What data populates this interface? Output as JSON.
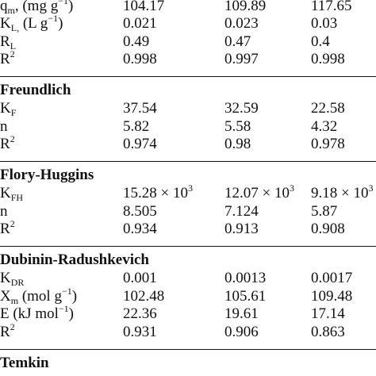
{
  "table": {
    "sections": [
      {
        "rows": [
          {
            "label": [
              {
                "t": "q"
              },
              {
                "sub": "m"
              },
              {
                "t": ", (mg g"
              },
              {
                "sup": "−1"
              },
              {
                "t": ")"
              }
            ],
            "cells": [
              104.17,
              109.89,
              117.65
            ]
          },
          {
            "label": [
              {
                "t": "K"
              },
              {
                "sub": "L,"
              },
              {
                "t": " (L g"
              },
              {
                "sup": "−1"
              },
              {
                "t": ")"
              }
            ],
            "cells": [
              0.021,
              0.023,
              0.03
            ]
          },
          {
            "label": [
              {
                "t": "R"
              },
              {
                "sub": "L"
              }
            ],
            "cells": [
              0.49,
              0.47,
              0.4
            ]
          },
          {
            "label": [
              {
                "t": "R"
              },
              {
                "sup": "2"
              }
            ],
            "cells": [
              0.998,
              0.997,
              0.998
            ]
          }
        ]
      },
      {
        "heading": "Freundlich",
        "rows": [
          {
            "label": [
              {
                "t": "K"
              },
              {
                "sub": "F"
              }
            ],
            "cells": [
              37.54,
              32.59,
              22.58
            ]
          },
          {
            "label": [
              {
                "t": "n"
              }
            ],
            "cells": [
              5.82,
              5.58,
              4.32
            ]
          },
          {
            "label": [
              {
                "t": "R"
              },
              {
                "sup": "2"
              }
            ],
            "cells": [
              0.974,
              0.98,
              0.978
            ]
          }
        ]
      },
      {
        "heading": "Flory-Huggins",
        "rows": [
          {
            "label": [
              {
                "t": "K"
              },
              {
                "sub": "FH"
              }
            ],
            "cells": [
              [
                {
                  "t": "15.28 × 10"
                },
                {
                  "sup": "3"
                }
              ],
              [
                {
                  "t": "12.07 × 10"
                },
                {
                  "sup": "3"
                }
              ],
              [
                {
                  "t": "9.18 × 10"
                },
                {
                  "sup": "3"
                }
              ]
            ]
          },
          {
            "label": [
              {
                "t": "n"
              }
            ],
            "cells": [
              8.505,
              7.124,
              5.87
            ]
          },
          {
            "label": [
              {
                "t": "R"
              },
              {
                "sup": "2"
              }
            ],
            "cells": [
              0.934,
              0.913,
              0.908
            ]
          }
        ]
      },
      {
        "heading": "Dubinin-Radushkevich",
        "rows": [
          {
            "label": [
              {
                "t": "K"
              },
              {
                "sub": "DR"
              }
            ],
            "cells": [
              0.001,
              0.0013,
              0.0017
            ]
          },
          {
            "label": [
              {
                "t": "X"
              },
              {
                "sub": "m"
              },
              {
                "t": " (mol g"
              },
              {
                "sup": "−1"
              },
              {
                "t": ")"
              }
            ],
            "cells": [
              102.48,
              105.61,
              109.48
            ]
          },
          {
            "label": [
              {
                "t": "E (kJ mol"
              },
              {
                "sup": "−1"
              },
              {
                "t": ")"
              }
            ],
            "cells": [
              22.36,
              19.61,
              17.14
            ]
          },
          {
            "label": [
              {
                "t": "R"
              },
              {
                "sup": "2"
              }
            ],
            "cells": [
              0.931,
              0.906,
              0.863
            ]
          }
        ]
      },
      {
        "heading": "Temkin",
        "rows": []
      }
    ]
  }
}
